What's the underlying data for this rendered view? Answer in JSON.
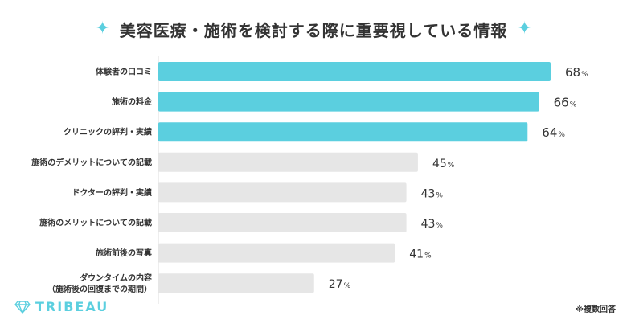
{
  "title": "美容医療・施術を検討する際に重要視している情報",
  "brand": "TRIBEAU",
  "footnote": "※複数回答",
  "colors": {
    "highlight": "#5bcfdf",
    "muted": "#e6e6e6",
    "text": "#333333"
  },
  "chart_data": {
    "type": "bar",
    "orientation": "horizontal",
    "unit": "%",
    "xlim": [
      0,
      100
    ],
    "categories": [
      "体験者の口コミ",
      "施術の料金",
      "クリニックの評判・実績",
      "施術のデメリットについての記載",
      "ドクターの評判・実績",
      "施術のメリットについての記載",
      "施術前後の写真",
      "ダウンタイムの内容\n（施術後の回復までの期間）"
    ],
    "values": [
      68,
      66,
      64,
      45,
      43,
      43,
      41,
      27
    ],
    "highlighted": [
      true,
      true,
      true,
      false,
      false,
      false,
      false,
      false
    ]
  }
}
